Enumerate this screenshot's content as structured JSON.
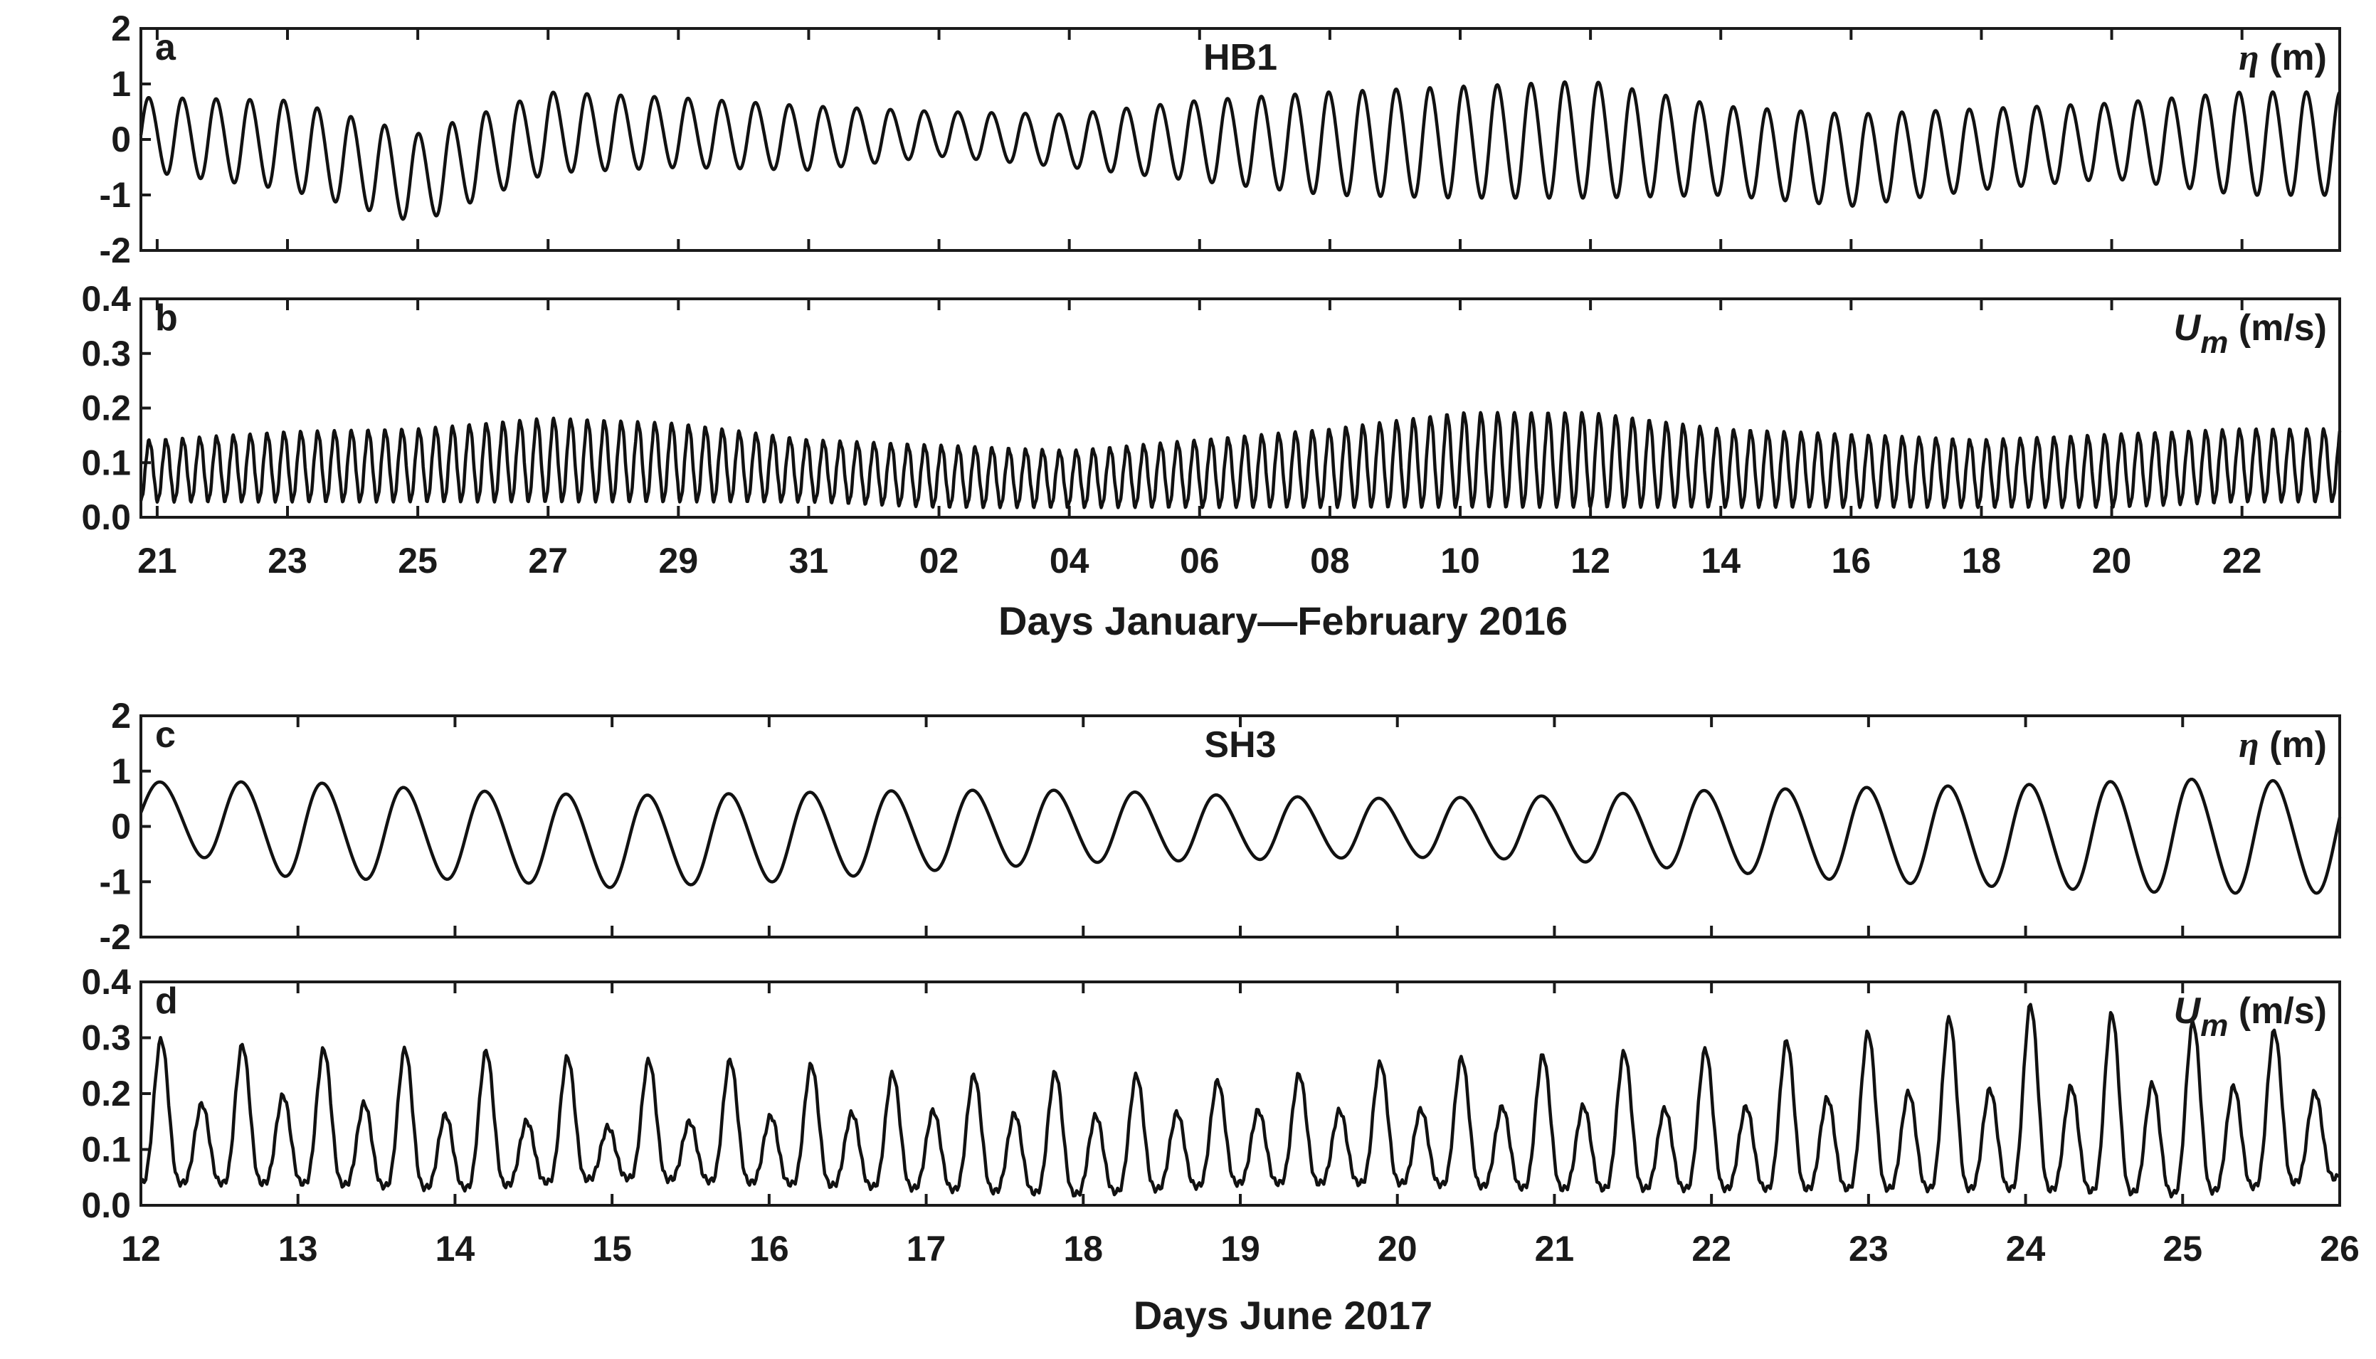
{
  "chart_data": [
    {
      "panel": "a",
      "type": "line",
      "title": "HB1",
      "ylabel": "η (m)",
      "ylabel_symbol": "η",
      "ylabel_unit": " (m)",
      "ylim": [
        -2,
        2
      ],
      "yticks": [
        "2",
        "1",
        "0",
        "-1",
        "-2"
      ],
      "xlim": [
        "2016-01-20T18:00",
        "2016-02-23T12:00"
      ],
      "xticks": [
        "21",
        "23",
        "25",
        "27",
        "29",
        "31",
        "02",
        "04",
        "06",
        "08",
        "10",
        "12",
        "14",
        "16",
        "18",
        "20",
        "22"
      ],
      "xticks_shown": false,
      "tidal_period_hours": 12.42,
      "x": [
        "2016-01-21",
        "2016-01-23",
        "2016-01-25",
        "2016-01-27",
        "2016-01-29",
        "2016-01-31",
        "2016-02-02",
        "2016-02-04",
        "2016-02-06",
        "2016-02-08",
        "2016-02-10",
        "2016-02-12",
        "2016-02-14",
        "2016-02-16",
        "2016-02-18",
        "2016-02-20",
        "2016-02-22"
      ],
      "high_water": [
        0.75,
        0.7,
        0.1,
        0.85,
        0.75,
        0.6,
        0.5,
        0.45,
        0.7,
        0.85,
        0.95,
        1.05,
        0.6,
        0.45,
        0.55,
        0.65,
        0.85
      ],
      "low_water": [
        -0.6,
        -0.9,
        -1.5,
        -0.6,
        -0.5,
        -0.55,
        -0.3,
        -0.5,
        -0.75,
        -1.0,
        -1.05,
        -1.05,
        -1.0,
        -1.2,
        -0.9,
        -0.7,
        -1.0
      ],
      "grid": false
    },
    {
      "panel": "b",
      "type": "line",
      "ylabel": "Um (m/s)",
      "ylabel_symbol": "U",
      "ylabel_subscript": "m",
      "ylabel_unit": " (m/s)",
      "ylim": [
        0,
        0.4
      ],
      "yticks": [
        "0.4",
        "0.3",
        "0.2",
        "0.1",
        "0.0"
      ],
      "xlim": [
        "2016-01-20T18:00",
        "2016-02-23T12:00"
      ],
      "xticks": [
        "21",
        "23",
        "25",
        "27",
        "29",
        "31",
        "02",
        "04",
        "06",
        "08",
        "10",
        "12",
        "14",
        "16",
        "18",
        "20",
        "22"
      ],
      "xticks_shown": true,
      "xlabel": "Days January—February 2016",
      "tidal_period_hours": 6.21,
      "x": [
        "2016-01-21",
        "2016-01-23",
        "2016-01-25",
        "2016-01-27",
        "2016-01-29",
        "2016-01-31",
        "2016-02-02",
        "2016-02-04",
        "2016-02-06",
        "2016-02-08",
        "2016-02-10",
        "2016-02-12",
        "2016-02-14",
        "2016-02-16",
        "2016-02-18",
        "2016-02-20",
        "2016-02-22"
      ],
      "peak": [
        0.14,
        0.155,
        0.16,
        0.18,
        0.17,
        0.14,
        0.13,
        0.12,
        0.14,
        0.16,
        0.19,
        0.19,
        0.16,
        0.15,
        0.14,
        0.15,
        0.16
      ],
      "trough": [
        0.03,
        0.03,
        0.03,
        0.03,
        0.03,
        0.03,
        0.02,
        0.02,
        0.02,
        0.02,
        0.02,
        0.02,
        0.02,
        0.02,
        0.02,
        0.02,
        0.03
      ],
      "grid": false
    },
    {
      "panel": "c",
      "type": "line",
      "title": "SH3",
      "ylabel": "η (m)",
      "ylabel_symbol": "η",
      "ylabel_unit": " (m)",
      "ylim": [
        -2,
        2
      ],
      "yticks": [
        "2",
        "1",
        "0",
        "-1",
        "-2"
      ],
      "xlim": [
        "2017-06-12T00:00",
        "2017-06-26T00:00"
      ],
      "xticks": [
        "12",
        "13",
        "14",
        "15",
        "16",
        "17",
        "18",
        "19",
        "20",
        "21",
        "22",
        "23",
        "24",
        "25",
        "26"
      ],
      "xticks_shown": false,
      "tidal_period_hours": 12.42,
      "x": [
        "2017-06-12",
        "2017-06-13",
        "2017-06-14",
        "2017-06-15",
        "2017-06-16",
        "2017-06-17",
        "2017-06-18",
        "2017-06-19",
        "2017-06-20",
        "2017-06-21",
        "2017-06-22",
        "2017-06-23",
        "2017-06-24",
        "2017-06-25",
        "2017-06-26"
      ],
      "high_water": [
        0.8,
        0.8,
        0.65,
        0.55,
        0.6,
        0.65,
        0.65,
        0.55,
        0.5,
        0.55,
        0.65,
        0.7,
        0.75,
        0.85,
        0.8
      ],
      "low_water": [
        -0.3,
        -0.95,
        -0.95,
        -1.1,
        -1.0,
        -0.8,
        -0.65,
        -0.6,
        -0.55,
        -0.6,
        -0.8,
        -1.0,
        -1.1,
        -1.2,
        -1.2
      ],
      "grid": false
    },
    {
      "panel": "d",
      "type": "line",
      "ylabel": "Um (m/s)",
      "ylabel_symbol": "U",
      "ylabel_subscript": "m",
      "ylabel_unit": " (m/s)",
      "ylim": [
        0,
        0.4
      ],
      "yticks": [
        "0.4",
        "0.3",
        "0.2",
        "0.1",
        "0.0"
      ],
      "xlim": [
        "2017-06-12T00:00",
        "2017-06-26T00:00"
      ],
      "xticks": [
        "12",
        "13",
        "14",
        "15",
        "16",
        "17",
        "18",
        "19",
        "20",
        "21",
        "22",
        "23",
        "24",
        "25",
        "26"
      ],
      "xticks_shown": true,
      "xlabel": "Days June 2017",
      "tidal_period_hours": 6.21,
      "x": [
        "2017-06-12",
        "2017-06-13",
        "2017-06-14",
        "2017-06-15",
        "2017-06-16",
        "2017-06-17",
        "2017-06-18",
        "2017-06-19",
        "2017-06-20",
        "2017-06-21",
        "2017-06-22",
        "2017-06-23",
        "2017-06-24",
        "2017-06-25",
        "2017-06-26"
      ],
      "major_peak": [
        0.3,
        0.28,
        0.28,
        0.26,
        0.26,
        0.23,
        0.24,
        0.22,
        0.26,
        0.27,
        0.28,
        0.31,
        0.36,
        0.33,
        0.3
      ],
      "minor_peak": [
        0.17,
        0.2,
        0.16,
        0.14,
        0.16,
        0.17,
        0.16,
        0.17,
        0.17,
        0.18,
        0.17,
        0.2,
        0.21,
        0.22,
        0.2
      ],
      "trough": [
        0.04,
        0.04,
        0.03,
        0.05,
        0.04,
        0.03,
        0.02,
        0.04,
        0.04,
        0.03,
        0.03,
        0.03,
        0.03,
        0.02,
        0.05
      ],
      "grid": false
    }
  ]
}
